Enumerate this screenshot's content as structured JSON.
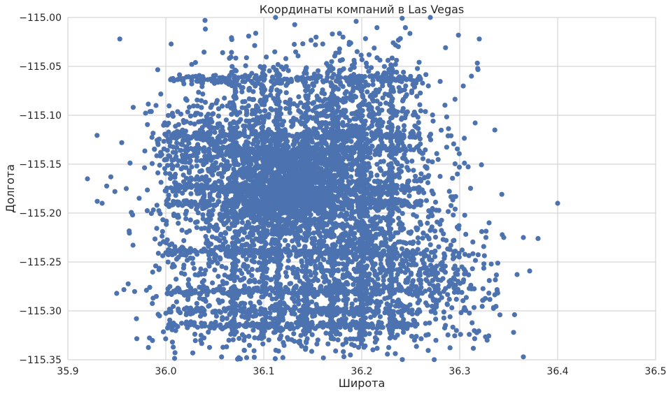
{
  "chart_data": {
    "type": "scatter",
    "title": "Координаты компаний в Las Vegas",
    "xlabel": "Широта",
    "ylabel": "Долгота",
    "xlim": [
      35.9,
      36.5
    ],
    "ylim": [
      -115.35,
      -115.0
    ],
    "x_ticks": [
      "35.9",
      "36.0",
      "36.1",
      "36.2",
      "36.3",
      "36.4",
      "36.5"
    ],
    "y_ticks": [
      "−115.00",
      "−115.05",
      "−115.10",
      "−115.15",
      "−115.20",
      "−115.25",
      "−115.30",
      "−115.35"
    ],
    "grid": true,
    "marker_color": "#4c72b0",
    "outliers": [
      [
        35.92,
        -115.165
      ],
      [
        35.953,
        -115.022
      ],
      [
        35.955,
        -115.128
      ],
      [
        35.97,
        -115.308
      ],
      [
        35.935,
        -115.19
      ],
      [
        35.99,
        -115.09
      ],
      [
        36.04,
        -115.003
      ],
      [
        36.112,
        -115.0
      ],
      [
        36.27,
        -115.0
      ],
      [
        36.32,
        -115.022
      ],
      [
        36.4,
        -115.19
      ],
      [
        36.365,
        -115.225
      ],
      [
        36.38,
        -115.226
      ],
      [
        36.365,
        -115.347
      ],
      [
        36.355,
        -115.322
      ],
      [
        36.328,
        -115.33
      ],
      [
        36.33,
        -115.21
      ],
      [
        36.268,
        -115.07
      ],
      [
        36.312,
        -115.06
      ],
      [
        36.345,
        -115.225
      ],
      [
        35.93,
        -115.188
      ],
      [
        35.948,
        -115.178
      ],
      [
        36.036,
        -115.325
      ]
    ]
  }
}
